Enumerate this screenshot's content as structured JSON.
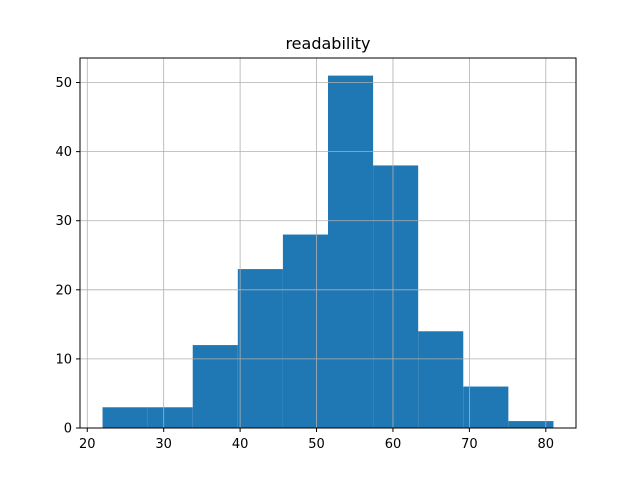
{
  "chart_data": {
    "type": "bar",
    "title": "readability",
    "xlabel": "",
    "ylabel": "",
    "bins": [
      {
        "start": 22.0,
        "end": 27.9,
        "count": 3
      },
      {
        "start": 27.9,
        "end": 33.8,
        "count": 3
      },
      {
        "start": 33.8,
        "end": 39.7,
        "count": 12
      },
      {
        "start": 39.7,
        "end": 45.6,
        "count": 23
      },
      {
        "start": 45.6,
        "end": 51.5,
        "count": 28
      },
      {
        "start": 51.5,
        "end": 57.4,
        "count": 51
      },
      {
        "start": 57.4,
        "end": 63.3,
        "count": 38
      },
      {
        "start": 63.3,
        "end": 69.2,
        "count": 14
      },
      {
        "start": 69.2,
        "end": 75.1,
        "count": 6
      },
      {
        "start": 75.1,
        "end": 81.0,
        "count": 1
      }
    ],
    "xlim": [
      19.05,
      83.95
    ],
    "ylim": [
      0,
      53.55
    ],
    "xticks": [
      20,
      30,
      40,
      50,
      60,
      70,
      80
    ],
    "yticks": [
      0,
      10,
      20,
      30,
      40,
      50
    ],
    "grid": true,
    "bar_color": "#1f77b4"
  }
}
